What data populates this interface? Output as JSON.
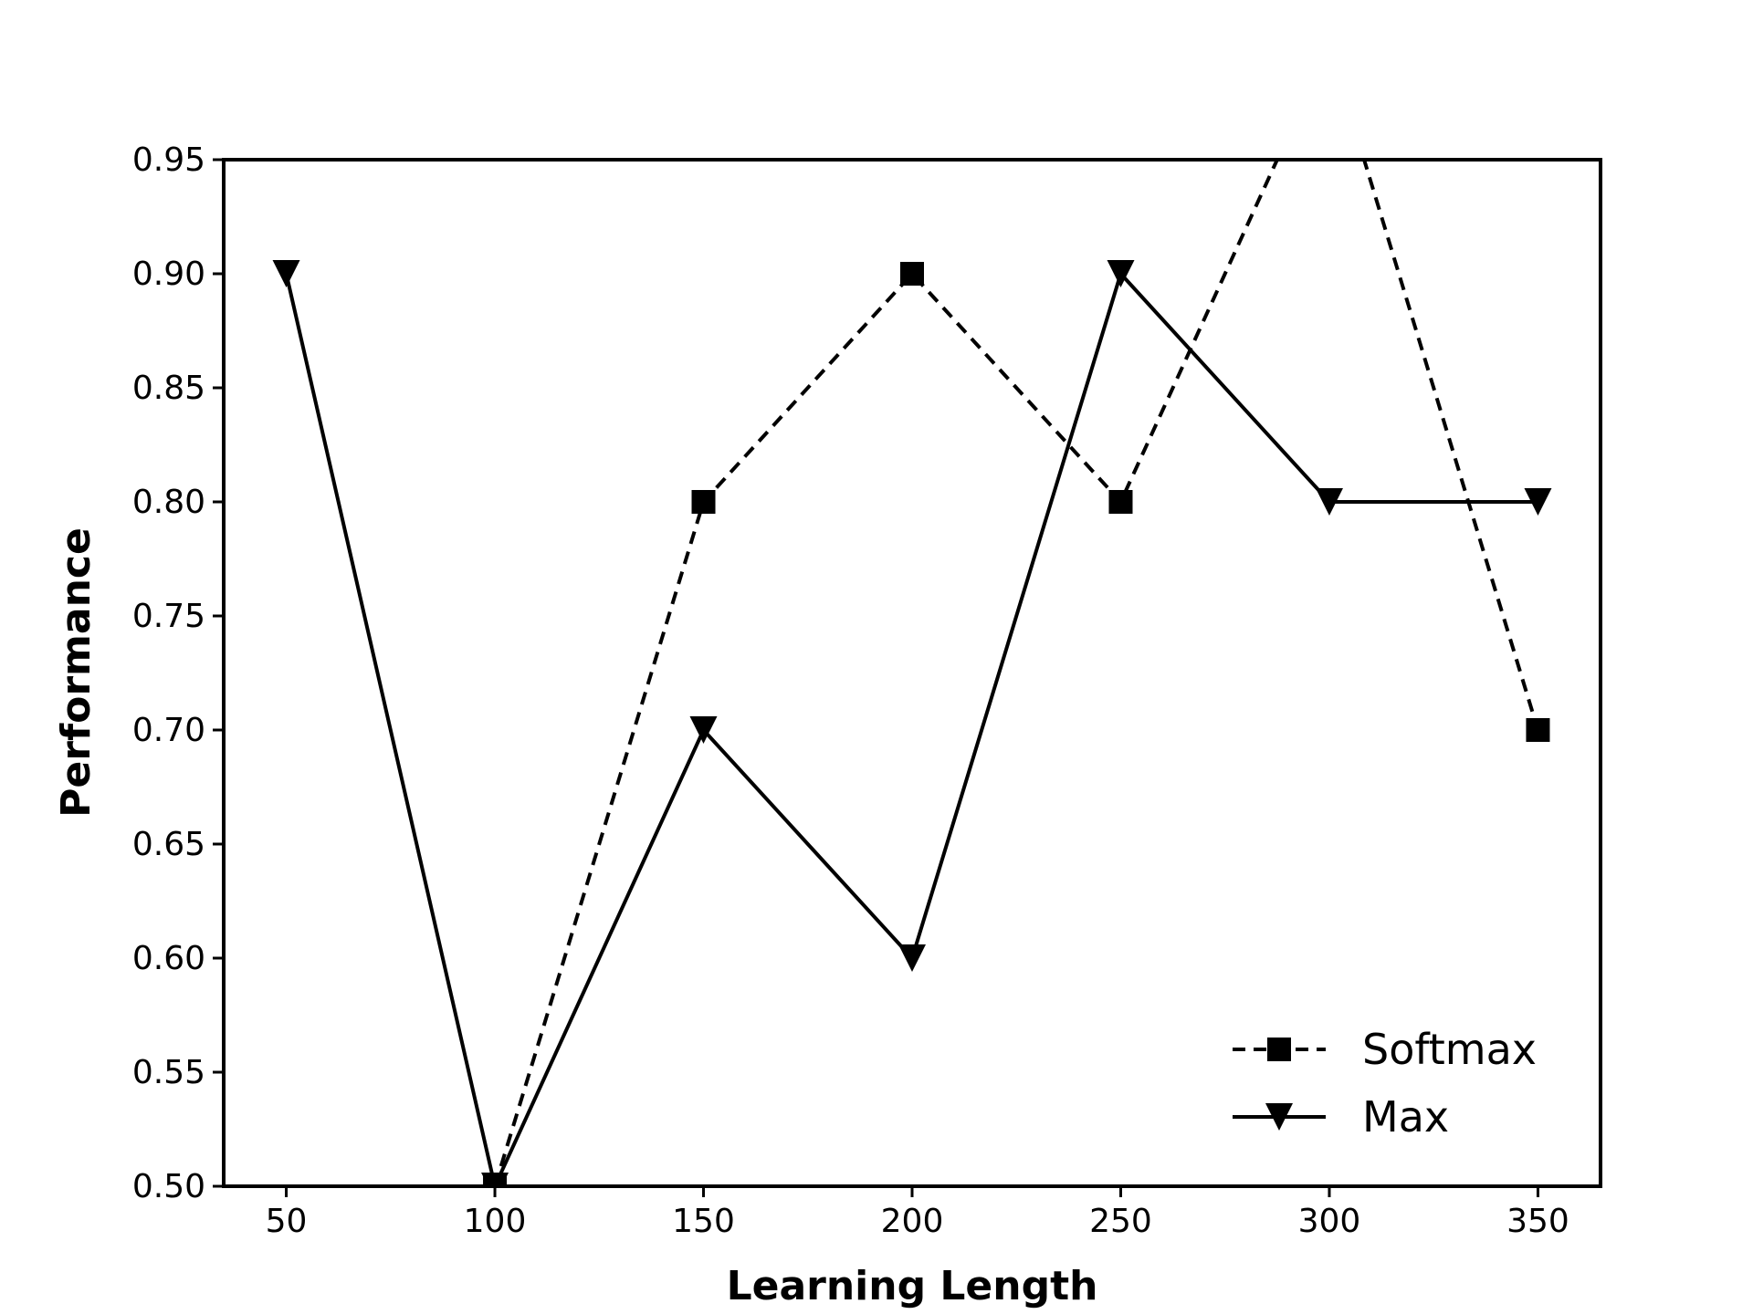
{
  "chart_data": {
    "type": "line",
    "title": "",
    "xlabel": "Learning Length",
    "ylabel": "Performance",
    "x": [
      50,
      100,
      150,
      200,
      250,
      300,
      350
    ],
    "xticks": [
      "50",
      "100",
      "150",
      "200",
      "250",
      "300",
      "350"
    ],
    "yticks": [
      "0.50",
      "0.55",
      "0.60",
      "0.65",
      "0.70",
      "0.75",
      "0.80",
      "0.85",
      "0.90",
      "0.95"
    ],
    "xlim": [
      35,
      365
    ],
    "ylim": [
      0.5,
      0.95
    ],
    "grid": false,
    "legend_position": "lower-right",
    "series": [
      {
        "name": "Softmax",
        "values": [
          null,
          0.5,
          0.8,
          0.9,
          0.8,
          1.0,
          0.7
        ],
        "linestyle": "dashed",
        "marker": "square",
        "color": "#000000"
      },
      {
        "name": "Max",
        "values": [
          0.9,
          0.5,
          0.7,
          0.6,
          0.9,
          0.8,
          0.8
        ],
        "linestyle": "solid",
        "marker": "triangle-down",
        "color": "#000000"
      }
    ]
  }
}
